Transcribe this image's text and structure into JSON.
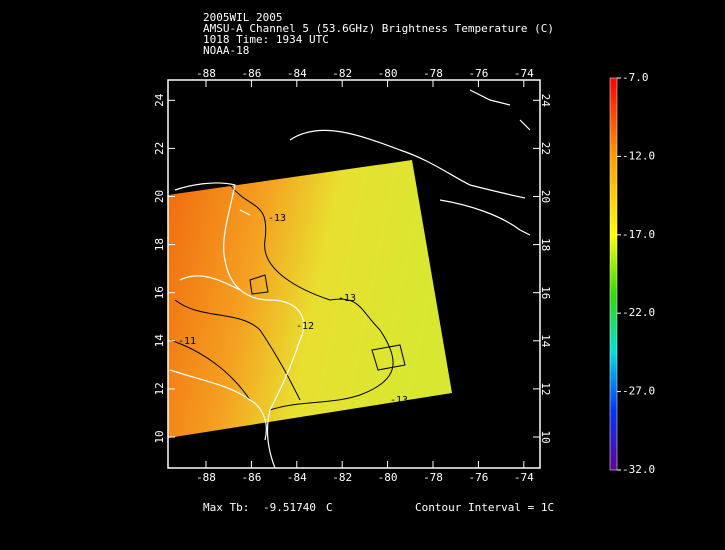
{
  "header": {
    "lines": [
      "2005WIL 2005",
      "AMSU-A Channel 5 (53.6GHz) Brightness Temperature (C)",
      "1018 Time: 1934 UTC",
      "NOAA-18"
    ]
  },
  "map": {
    "lon_ticks": [
      "-88",
      "-86",
      "-84",
      "-82",
      "-80",
      "-78",
      "-76",
      "-74"
    ],
    "lat_ticks": [
      "10",
      "12",
      "14",
      "16",
      "18",
      "20",
      "22",
      "24"
    ],
    "contour_labels": [
      "-13",
      "-13",
      "-12",
      "-11",
      "-13"
    ]
  },
  "colorbar": {
    "labels": [
      "-7.0",
      "-12.0",
      "-17.0",
      "-22.0",
      "-27.0",
      "-32.0"
    ]
  },
  "footer": {
    "max_label": "Max Tb:",
    "max_value": "-9.51740",
    "max_unit": "C",
    "contour_interval": "Contour Interval = 1C"
  }
}
